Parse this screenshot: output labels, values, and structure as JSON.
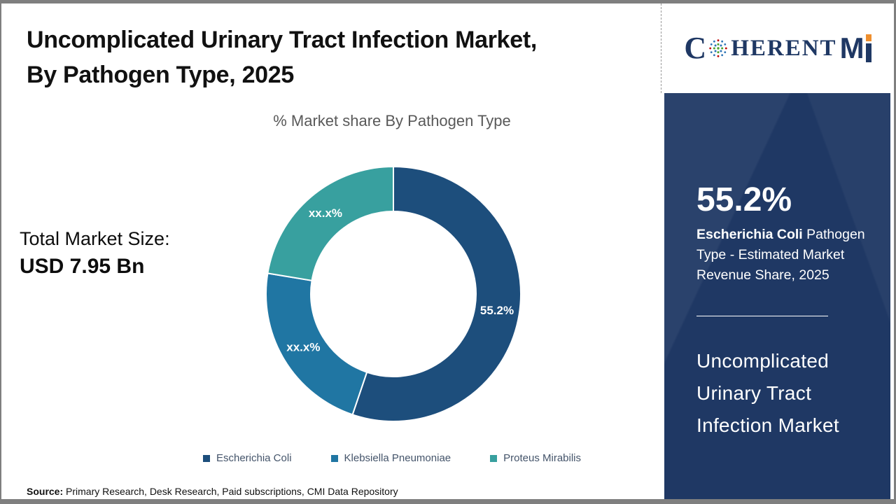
{
  "header": {
    "title_line1": "Uncomplicated Urinary Tract Infection Market,",
    "title_line2": "By Pathogen Type, 2025"
  },
  "subtitle": "% Market share By Pathogen Type",
  "total_market": {
    "label": "Total Market Size:",
    "value": "USD 7.95 Bn"
  },
  "chart_data": {
    "type": "pie",
    "subtype": "donut",
    "title": "% Market share By Pathogen Type",
    "slices": [
      {
        "name": "Escherichia Coli",
        "value": 55.2,
        "label": "55.2%",
        "color": "#1d4e7c"
      },
      {
        "name": "Klebsiella Pneumoniae",
        "value": 22.4,
        "label": "xx.x%",
        "color": "#2076a3"
      },
      {
        "name": "Proteus Mirabilis",
        "value": 22.4,
        "label": "xx.x%",
        "color": "#38a09f"
      }
    ],
    "legend_position": "bottom",
    "start_angle_deg": 0,
    "direction": "clockwise"
  },
  "sidebar": {
    "stat": "55.2%",
    "desc_bold": "Escherichia Coli",
    "desc_rest": " Pathogen Type - Estimated Market Revenue Share, 2025",
    "title": "Uncomplicated Urinary Tract Infection Market"
  },
  "logo": {
    "part_c": "C",
    "part_rest": "HERENT",
    "part_m": "M"
  },
  "source": {
    "label": "Source:",
    "text": " Primary Research, Desk Research, Paid subscriptions, CMI Data Repository"
  },
  "colors": {
    "sidebar_navy": "#1f3864",
    "frame_gray": "#7f7f7f",
    "subtitle_gray": "#595959",
    "legend_text": "#44546a"
  }
}
